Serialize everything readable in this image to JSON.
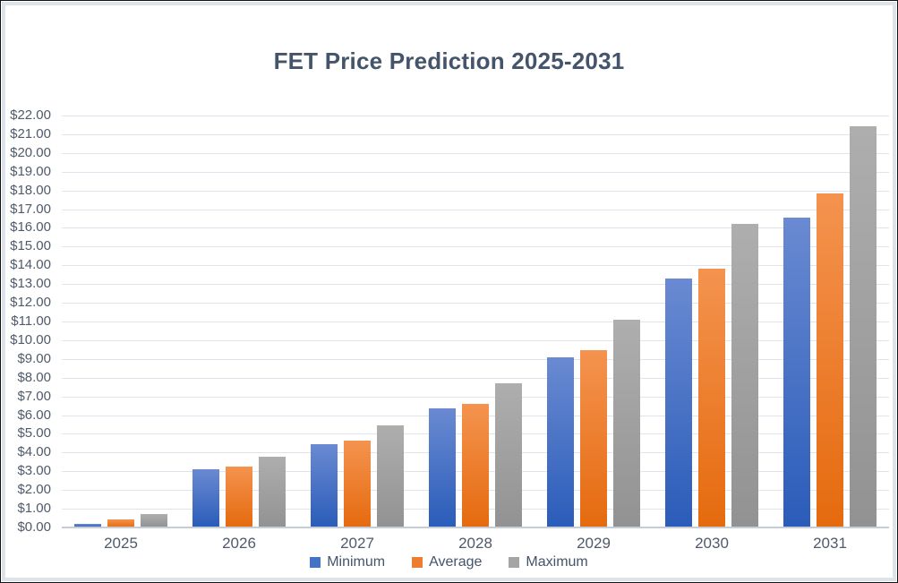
{
  "chart_data": {
    "type": "bar",
    "title": "FET Price Prediction 2025-2031",
    "categories": [
      "2025",
      "2026",
      "2027",
      "2028",
      "2029",
      "2030",
      "2031"
    ],
    "series": [
      {
        "name": "Minimum",
        "color": "#4472C4",
        "values": [
          0.2,
          3.1,
          4.45,
          6.35,
          9.1,
          13.3,
          16.55
        ]
      },
      {
        "name": "Average",
        "color": "#ED7D31",
        "values": [
          0.45,
          3.25,
          4.65,
          6.6,
          9.45,
          13.8,
          17.85
        ]
      },
      {
        "name": "Maximum",
        "color": "#A5A5A5",
        "values": [
          0.7,
          3.8,
          5.45,
          7.7,
          11.1,
          16.2,
          21.45
        ]
      }
    ],
    "xlabel": "",
    "ylabel": "",
    "y_axis": {
      "min": 0,
      "max": 22,
      "step": 1,
      "tick_labels": [
        "$22.00",
        "$21.00",
        "$20.00",
        "$19.00",
        "$18.00",
        "$17.00",
        "$16.00",
        "$15.00",
        "$14.00",
        "$13.00",
        "$12.00",
        "$11.00",
        "$10.00",
        "$9.00",
        "$8.00",
        "$7.00",
        "$6.00",
        "$5.00",
        "$4.00",
        "$3.00",
        "$2.00",
        "$1.00",
        "$0.00"
      ]
    },
    "grid": true,
    "legend": {
      "position": "bottom",
      "entries": [
        "Minimum",
        "Average",
        "Maximum"
      ]
    }
  },
  "colors": {
    "title_text": "#44546A",
    "axis_text": "#4F5A6A",
    "gridline": "#DFE4EC",
    "axis_line": "#C7CDD8",
    "chart_border": "#DDE3EB"
  }
}
